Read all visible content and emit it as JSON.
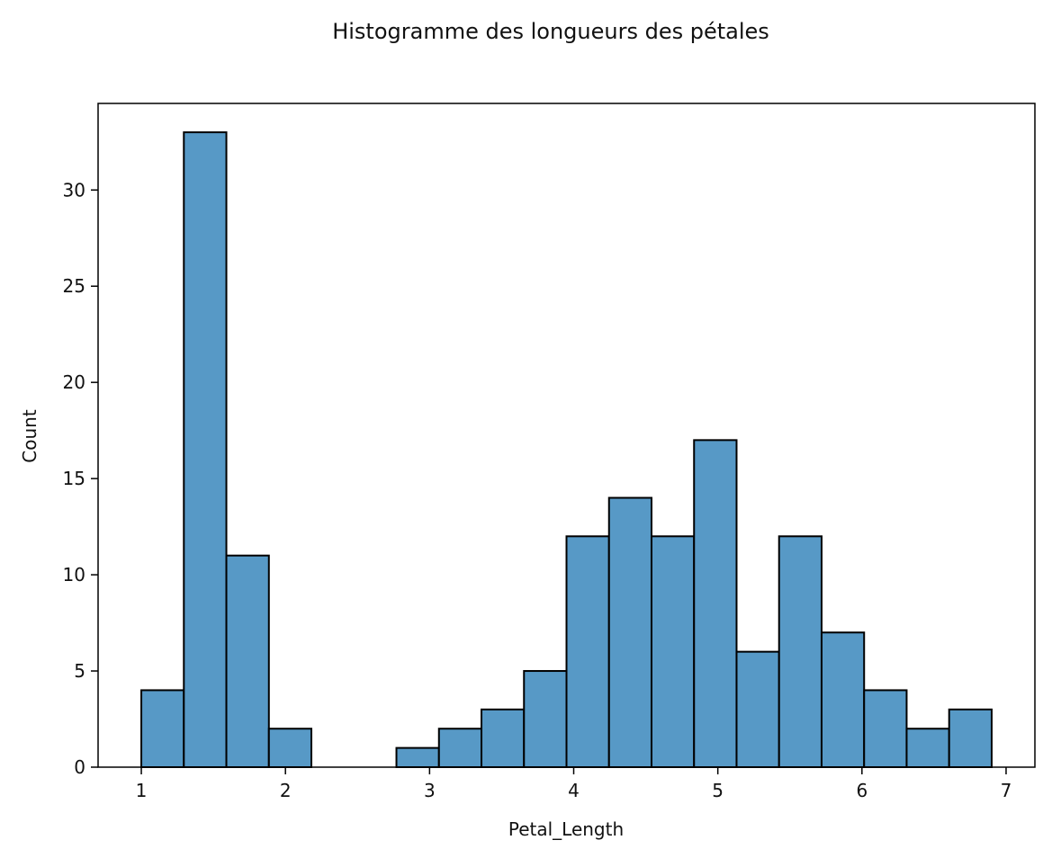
{
  "chart_data": {
    "type": "bar",
    "title": "Histogramme des longueurs des pétales",
    "xlabel": "Petal_Length",
    "ylabel": "Count",
    "bin_start": 1.0,
    "bin_width": 0.295,
    "values": [
      4,
      33,
      11,
      2,
      0,
      0,
      1,
      2,
      3,
      5,
      12,
      14,
      12,
      17,
      6,
      12,
      7,
      4,
      2,
      3
    ],
    "xlim": [
      0.7,
      7.2
    ],
    "ylim": [
      0,
      34.5
    ],
    "x_ticks": [
      1,
      2,
      3,
      4,
      5,
      6,
      7
    ],
    "y_ticks": [
      0,
      5,
      10,
      15,
      20,
      25,
      30
    ],
    "grid": false,
    "bar_color": "#5799c6",
    "edge_color": "#000000"
  }
}
